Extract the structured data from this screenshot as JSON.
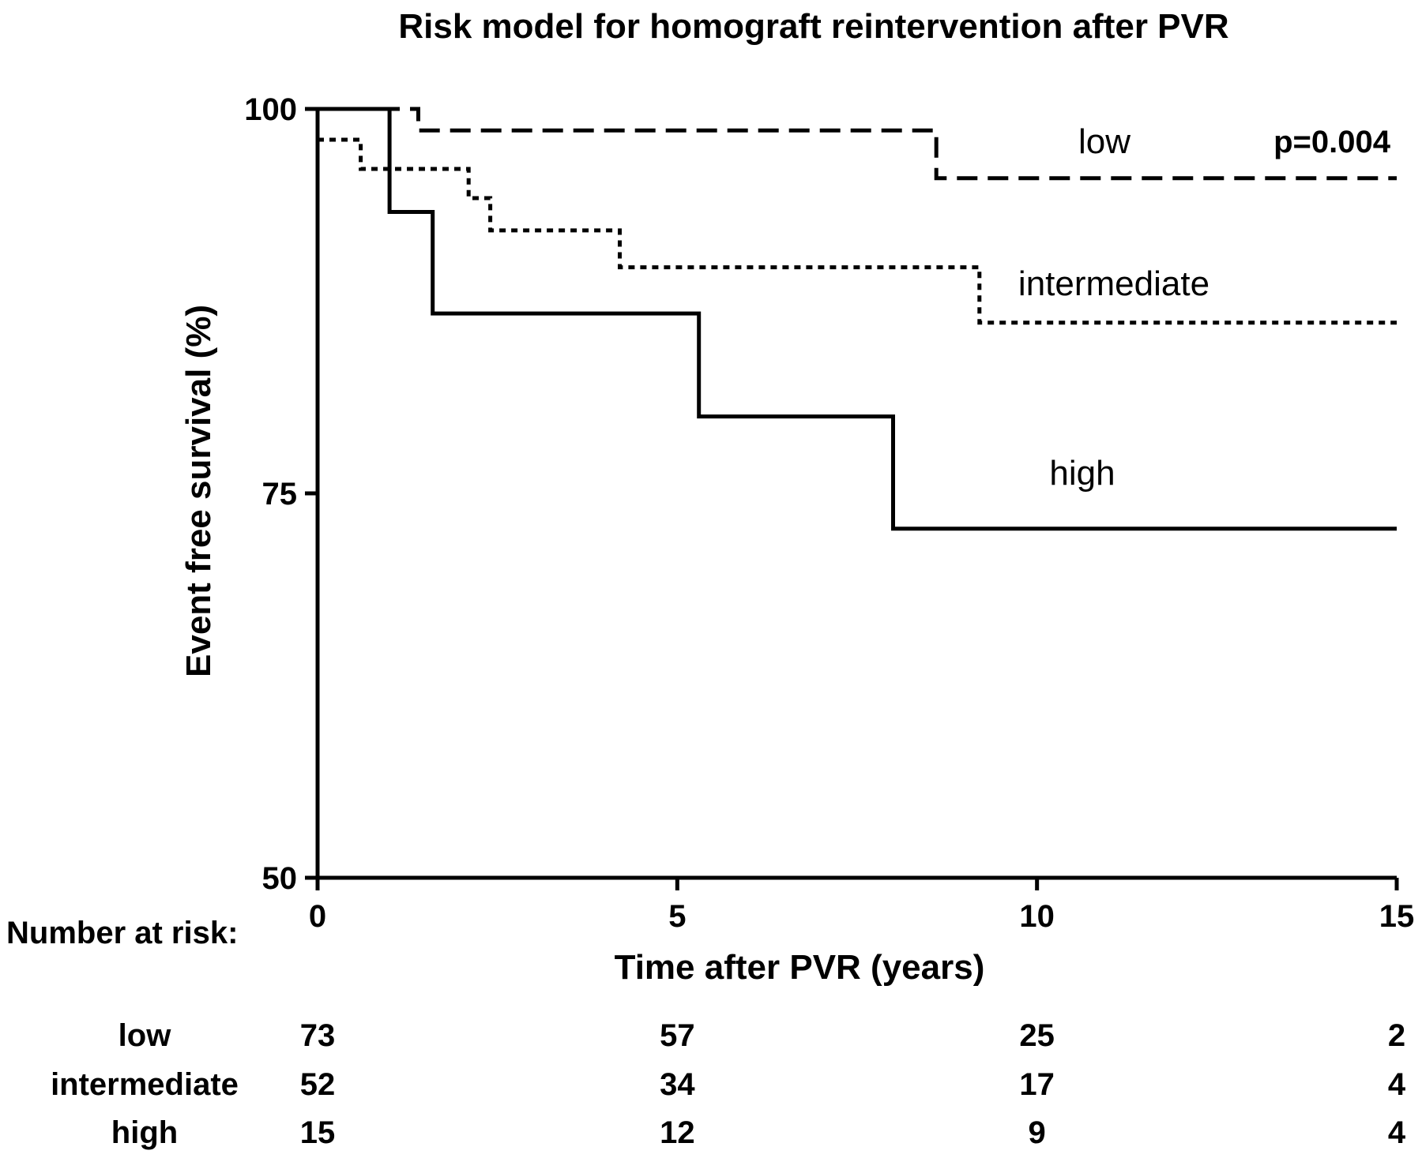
{
  "chart_data": {
    "type": "line",
    "subtype": "kaplan-meier step curves",
    "title": "Risk model for homograft reintervention after PVR",
    "xlabel": "Time after PVR (years)",
    "ylabel": "Event free survival (%)",
    "xlim": [
      0,
      15
    ],
    "ylim": [
      50,
      100
    ],
    "xticks": [
      0,
      5,
      10,
      15
    ],
    "yticks": [
      50,
      75,
      100
    ],
    "grid": false,
    "annotation": "p=0.004",
    "series": [
      {
        "name": "low",
        "line_style": "dashed",
        "x": [
          0,
          1.4,
          1.4,
          8.6,
          8.6,
          15
        ],
        "y": [
          100,
          100,
          98.6,
          98.6,
          95.5,
          95.5
        ]
      },
      {
        "name": "intermediate",
        "line_style": "dotted",
        "x": [
          0,
          0.6,
          0.6,
          2.1,
          2.1,
          2.4,
          2.4,
          4.2,
          4.2,
          9.2,
          9.2,
          15
        ],
        "y": [
          98,
          98,
          96.1,
          96.1,
          94.2,
          94.2,
          92.1,
          92.1,
          89.7,
          89.7,
          86.1,
          86.1
        ]
      },
      {
        "name": "high",
        "line_style": "solid",
        "x": [
          0,
          1,
          1,
          1.6,
          1.6,
          5.3,
          5.3,
          8,
          8,
          15
        ],
        "y": [
          100,
          100,
          93.3,
          93.3,
          86.7,
          86.7,
          80,
          80,
          72.7,
          72.7
        ]
      }
    ],
    "risk_table": {
      "header": "Number at risk:",
      "times": [
        0,
        5,
        10,
        15
      ],
      "rows": [
        {
          "label": "low",
          "counts": [
            "73",
            "57",
            "25",
            "2"
          ]
        },
        {
          "label": "intermediate",
          "counts": [
            "52",
            "34",
            "17",
            "4"
          ]
        },
        {
          "label": "high",
          "counts": [
            "15",
            "12",
            "9",
            "4"
          ]
        }
      ]
    }
  }
}
